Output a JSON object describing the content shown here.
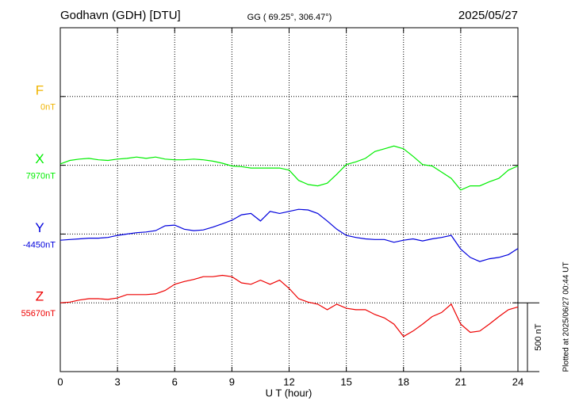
{
  "chart_data": {
    "type": "line",
    "title": "Godhavn (GDH)  [DTU]",
    "subtitle": "GG ( 69.25°, 306.47°)",
    "date": "2025/05/27",
    "xlabel": "U T (hour)",
    "footnote": "Plotted at 2025/06/27 00:44 UT",
    "xlim": [
      0,
      24
    ],
    "xticks": [
      0,
      3,
      6,
      9,
      12,
      15,
      18,
      21,
      24
    ],
    "grid": true,
    "scale_bar": {
      "value": 500,
      "label": "500 nT"
    },
    "x": [
      0,
      0.5,
      1,
      1.5,
      2,
      2.5,
      3,
      3.5,
      4,
      4.5,
      5,
      5.5,
      6,
      6.5,
      7,
      7.5,
      8,
      8.5,
      9,
      9.5,
      10,
      10.5,
      11,
      11.5,
      12,
      12.5,
      13,
      13.5,
      14,
      14.5,
      15,
      15.5,
      16,
      16.5,
      17,
      17.5,
      18,
      18.5,
      19,
      19.5,
      20,
      20.5,
      21,
      21.5,
      22,
      22.5,
      23,
      23.5,
      24
    ],
    "series": [
      {
        "name": "F",
        "color": "#f0b400",
        "baseline": {
          "value": 0,
          "label": "0nT"
        },
        "values": [
          null,
          null,
          null,
          null,
          null,
          null,
          null,
          null,
          null,
          null,
          null,
          null,
          null,
          null,
          null,
          null,
          null,
          null,
          null,
          null,
          null,
          null,
          null,
          null,
          null,
          null,
          null,
          null,
          null,
          null,
          null,
          null,
          null,
          null,
          null,
          null,
          null,
          null,
          null,
          null,
          null,
          null,
          null,
          null,
          null,
          null,
          null,
          null,
          null
        ]
      },
      {
        "name": "X",
        "color": "#00ee00",
        "baseline": {
          "value": 7970,
          "label": "7970nT"
        },
        "values": [
          7980,
          8005,
          8015,
          8020,
          8010,
          8005,
          8015,
          8020,
          8030,
          8020,
          8030,
          8015,
          8010,
          8010,
          8015,
          8010,
          8000,
          7985,
          7965,
          7960,
          7950,
          7950,
          7950,
          7950,
          7935,
          7860,
          7830,
          7820,
          7840,
          7905,
          7975,
          7995,
          8020,
          8070,
          8090,
          8110,
          8090,
          8035,
          7975,
          7965,
          7920,
          7875,
          7790,
          7820,
          7820,
          7850,
          7875,
          7935,
          7965
        ]
      },
      {
        "name": "Y",
        "color": "#0000dd",
        "baseline": {
          "value": -4450,
          "label": "-4450nT"
        },
        "values": [
          -4495,
          -4490,
          -4485,
          -4480,
          -4480,
          -4475,
          -4460,
          -4450,
          -4440,
          -4435,
          -4425,
          -4390,
          -4385,
          -4415,
          -4425,
          -4420,
          -4400,
          -4375,
          -4350,
          -4310,
          -4300,
          -4355,
          -4285,
          -4300,
          -4285,
          -4270,
          -4275,
          -4300,
          -4355,
          -4415,
          -4460,
          -4475,
          -4485,
          -4490,
          -4490,
          -4510,
          -4495,
          -4485,
          -4500,
          -4485,
          -4475,
          -4460,
          -4560,
          -4620,
          -4650,
          -4630,
          -4620,
          -4600,
          -4555
        ]
      },
      {
        "name": "Z",
        "color": "#ee0000",
        "baseline": {
          "value": 55670,
          "label": "55670nT"
        },
        "values": [
          55670,
          55675,
          55690,
          55700,
          55700,
          55695,
          55705,
          55730,
          55730,
          55730,
          55735,
          55760,
          55805,
          55825,
          55840,
          55860,
          55860,
          55870,
          55860,
          55815,
          55805,
          55835,
          55805,
          55835,
          55775,
          55700,
          55675,
          55660,
          55620,
          55660,
          55630,
          55620,
          55620,
          55585,
          55560,
          55515,
          55425,
          55465,
          55515,
          55570,
          55600,
          55660,
          55515,
          55455,
          55465,
          55515,
          55570,
          55620,
          55640
        ]
      }
    ]
  }
}
